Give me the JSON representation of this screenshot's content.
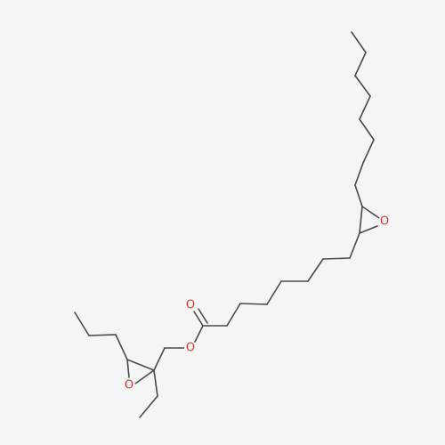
{
  "molecule": {
    "atoms": {
      "o_ester_carbonyl": "O",
      "o_ester_single": "O",
      "o_epoxide_upper": "O",
      "o_epoxide_lower": "O"
    }
  },
  "colors": {
    "background": "#f5f5f5",
    "bond": "#4a4a4a",
    "oxygen": "#e8322c"
  }
}
